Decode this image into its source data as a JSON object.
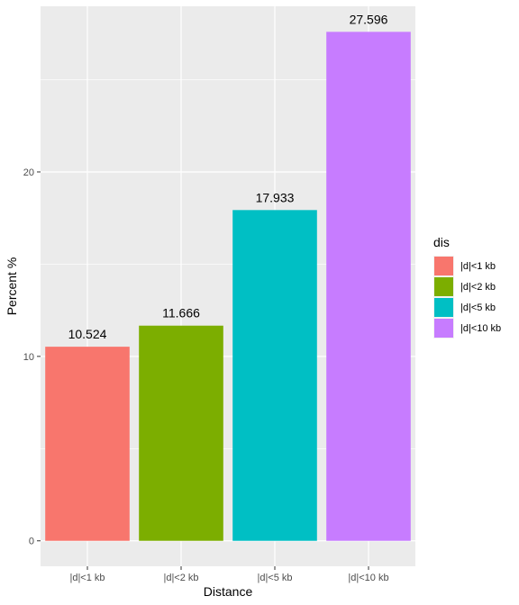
{
  "chart_data": {
    "type": "bar",
    "categories": [
      "|d|<1 kb",
      "|d|<2 kb",
      "|d|<5 kb",
      "|d|<10 kb"
    ],
    "values": [
      10.524,
      11.666,
      17.933,
      27.596
    ],
    "data_labels": [
      "10.524",
      "11.666",
      "17.933",
      "27.596"
    ],
    "colors": [
      "#F8766D",
      "#7CAE00",
      "#00BFC4",
      "#C77CFF"
    ],
    "xlabel": "Distance",
    "ylabel": "Percent %",
    "yticks": [
      0,
      10,
      20
    ],
    "ylim": [
      -1.38,
      28.98
    ],
    "grid": true,
    "panel_background": "#EBEBEB",
    "legend": {
      "title": "dis",
      "position": "right",
      "entries": [
        "|d|<1 kb",
        "|d|<2 kb",
        "|d|<5 kb",
        "|d|<10 kb"
      ]
    }
  }
}
